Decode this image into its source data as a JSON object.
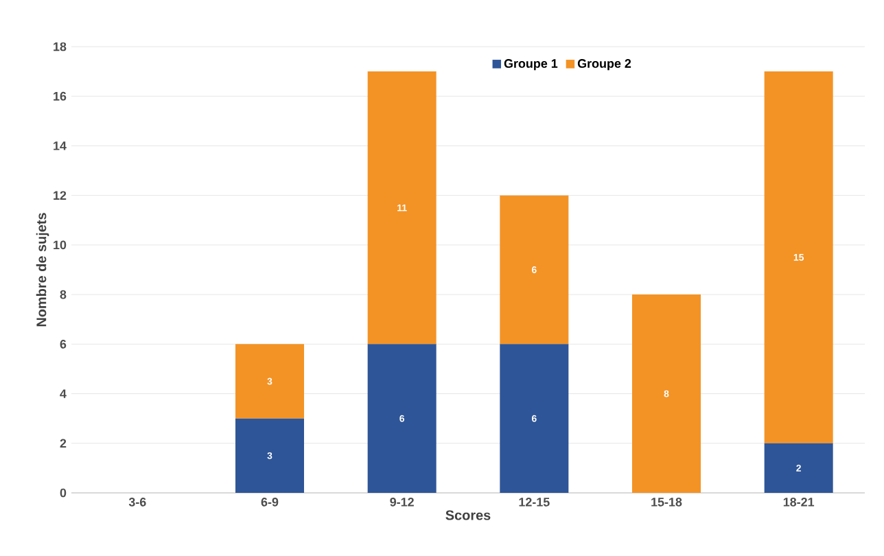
{
  "chart_data": {
    "type": "bar",
    "stacked": true,
    "xlabel": "Scores",
    "ylabel": "Nombre de sujets",
    "categories": [
      "3-6",
      "6-9",
      "9-12",
      "12-15",
      "15-18",
      "18-21"
    ],
    "series": [
      {
        "name": "Groupe 1",
        "color": "#2e5597",
        "values": [
          0,
          3,
          6,
          6,
          0,
          2
        ],
        "value_labels": [
          null,
          "3",
          "6",
          "6",
          null,
          "2"
        ]
      },
      {
        "name": "Groupe 2",
        "color": "#f39325",
        "values": [
          0,
          3,
          11,
          6,
          8,
          15
        ],
        "value_labels": [
          null,
          "3",
          "11",
          "6",
          "8",
          "15"
        ]
      }
    ],
    "ylim": [
      0,
      18
    ],
    "yticks": [
      0,
      2,
      4,
      6,
      8,
      10,
      12,
      14,
      16,
      18
    ],
    "grid": "y",
    "legend": "top"
  }
}
